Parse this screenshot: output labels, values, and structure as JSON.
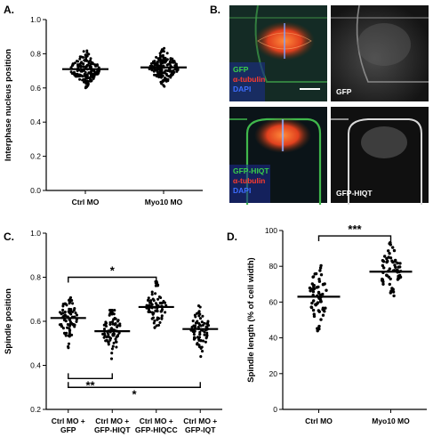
{
  "panel_labels": {
    "a": "A.",
    "b": "B.",
    "c": "C.",
    "d": "D."
  },
  "micro": {
    "tl": [
      {
        "text": "GFP",
        "color": "#39d04a"
      },
      {
        "text": "α-tubulin",
        "color": "#ff3b2e"
      },
      {
        "text": "DAPI",
        "color": "#3d6dff"
      }
    ],
    "tr": "GFP",
    "bl": [
      {
        "text": "GFP-HIQT",
        "color": "#39d04a"
      },
      {
        "text": "α-tubulin",
        "color": "#ff3b2e"
      },
      {
        "text": "DAPI",
        "color": "#3d6dff"
      }
    ],
    "br": "GFP-HIQT"
  },
  "chart_data": [
    {
      "id": "A",
      "type": "scatter",
      "ylabel": "Interphase nucleus position",
      "ylim": [
        0,
        1.0
      ],
      "yticks": [
        "0.0",
        "0.2",
        "0.4",
        "0.6",
        "0.8",
        "1.0"
      ],
      "categories": [
        "Ctrl MO",
        "Myo10 MO"
      ],
      "series": [
        {
          "mean": 0.71,
          "spread": 0.045,
          "n": 170,
          "min": 0.6,
          "max": 0.83
        },
        {
          "mean": 0.72,
          "spread": 0.045,
          "n": 170,
          "min": 0.58,
          "max": 0.84
        }
      ]
    },
    {
      "id": "C",
      "type": "scatter",
      "ylabel": "Spindle position",
      "ylim": [
        0.2,
        1.0
      ],
      "yticks": [
        "0.2",
        "0.4",
        "0.6",
        "0.8",
        "1.0"
      ],
      "categories": [
        [
          "Ctrl MO +",
          "GFP"
        ],
        [
          "Ctrl MO +",
          "GFP-HIQT"
        ],
        [
          "Ctrl MO +",
          "GFP-HIQCC"
        ],
        [
          "Ctrl MO +",
          "GFP-IQT"
        ]
      ],
      "series": [
        {
          "mean": 0.615,
          "spread": 0.05,
          "n": 80,
          "min": 0.48,
          "max": 0.74
        },
        {
          "mean": 0.555,
          "spread": 0.05,
          "n": 80,
          "min": 0.43,
          "max": 0.65
        },
        {
          "mean": 0.665,
          "spread": 0.05,
          "n": 80,
          "min": 0.53,
          "max": 0.78
        },
        {
          "mean": 0.565,
          "spread": 0.05,
          "n": 80,
          "min": 0.44,
          "max": 0.71
        }
      ],
      "significance": [
        {
          "from": 0,
          "to": 2,
          "label": "*",
          "y": 0.8,
          "side": "top"
        },
        {
          "from": 0,
          "to": 1,
          "label": "**",
          "y": 0.34,
          "side": "bottom"
        },
        {
          "from": 0,
          "to": 3,
          "label": "*",
          "y": 0.3,
          "side": "bottom"
        }
      ]
    },
    {
      "id": "D",
      "type": "scatter",
      "ylabel": "Spindle length (% of cell width)",
      "ylim": [
        0,
        100
      ],
      "yticks": [
        "0",
        "20",
        "40",
        "60",
        "80",
        "100"
      ],
      "categories": [
        "Ctrl MO",
        "Myo10 MO"
      ],
      "series": [
        {
          "mean": 63,
          "spread": 9,
          "n": 60,
          "min": 43,
          "max": 94
        },
        {
          "mean": 77,
          "spread": 8,
          "n": 60,
          "min": 56,
          "max": 94
        }
      ],
      "significance": [
        {
          "from": 0,
          "to": 1,
          "label": "***",
          "y": 97,
          "side": "top"
        }
      ]
    }
  ]
}
